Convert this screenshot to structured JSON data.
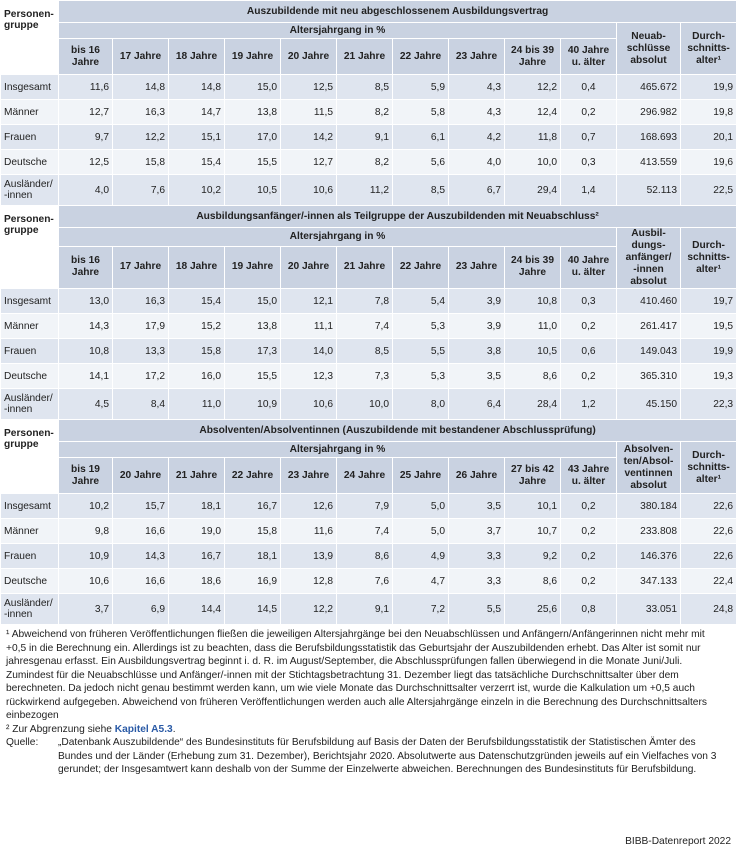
{
  "sections": [
    {
      "title": "Auszubildende mit neu abgeschlossenem Ausbildungsvertrag",
      "row_header": "Personen-\ngruppe",
      "age_header": "Altersjahrgang in %",
      "age_columns": [
        "bis 16 Jahre",
        "17 Jahre",
        "18 Jahre",
        "19 Jahre",
        "20 Jahre",
        "21 Jahre",
        "22 Jahre",
        "23 Jahre",
        "24 bis 39 Jahre",
        "40 Jahre u. älter"
      ],
      "abs_header": "Neuab-\nschlüsse\nabsolut",
      "avg_header": "Durch-\nschnitts-\nalter¹",
      "rows": [
        {
          "label": "Insgesamt",
          "values": [
            "11,6",
            "14,8",
            "14,8",
            "15,0",
            "12,5",
            "8,5",
            "5,9",
            "4,3",
            "12,2",
            "0,4"
          ],
          "abs": "465.672",
          "avg": "19,9"
        },
        {
          "label": "Männer",
          "values": [
            "12,7",
            "16,3",
            "14,7",
            "13,8",
            "11,5",
            "8,2",
            "5,8",
            "4,3",
            "12,4",
            "0,2"
          ],
          "abs": "296.982",
          "avg": "19,8"
        },
        {
          "label": "Frauen",
          "values": [
            "9,7",
            "12,2",
            "15,1",
            "17,0",
            "14,2",
            "9,1",
            "6,1",
            "4,2",
            "11,8",
            "0,7"
          ],
          "abs": "168.693",
          "avg": "20,1"
        },
        {
          "label": "Deutsche",
          "values": [
            "12,5",
            "15,8",
            "15,4",
            "15,5",
            "12,7",
            "8,2",
            "5,6",
            "4,0",
            "10,0",
            "0,3"
          ],
          "abs": "413.559",
          "avg": "19,6"
        },
        {
          "label": "Ausländer/\n-innen",
          "values": [
            "4,0",
            "7,6",
            "10,2",
            "10,5",
            "10,6",
            "11,2",
            "8,5",
            "6,7",
            "29,4",
            "1,4"
          ],
          "abs": "52.113",
          "avg": "22,5"
        }
      ]
    },
    {
      "title": "Ausbildungsanfänger/-innen als Teilgruppe der Auszubildenden mit Neuabschluss²",
      "row_header": "Personen-\ngruppe",
      "age_header": "Altersjahrgang in %",
      "age_columns": [
        "bis 16 Jahre",
        "17 Jahre",
        "18 Jahre",
        "19 Jahre",
        "20 Jahre",
        "21 Jahre",
        "22 Jahre",
        "23 Jahre",
        "24 bis 39 Jahre",
        "40 Jahre u. älter"
      ],
      "abs_header": "Ausbil-\ndungs-\nanfänger/\n-innen\nabsolut",
      "avg_header": "Durch-\nschnitts-\nalter¹",
      "rows": [
        {
          "label": "Insgesamt",
          "values": [
            "13,0",
            "16,3",
            "15,4",
            "15,0",
            "12,1",
            "7,8",
            "5,4",
            "3,9",
            "10,8",
            "0,3"
          ],
          "abs": "410.460",
          "avg": "19,7"
        },
        {
          "label": "Männer",
          "values": [
            "14,3",
            "17,9",
            "15,2",
            "13,8",
            "11,1",
            "7,4",
            "5,3",
            "3,9",
            "11,0",
            "0,2"
          ],
          "abs": "261.417",
          "avg": "19,5"
        },
        {
          "label": "Frauen",
          "values": [
            "10,8",
            "13,3",
            "15,8",
            "17,3",
            "14,0",
            "8,5",
            "5,5",
            "3,8",
            "10,5",
            "0,6"
          ],
          "abs": "149.043",
          "avg": "19,9"
        },
        {
          "label": "Deutsche",
          "values": [
            "14,1",
            "17,2",
            "16,0",
            "15,5",
            "12,3",
            "7,3",
            "5,3",
            "3,5",
            "8,6",
            "0,2"
          ],
          "abs": "365.310",
          "avg": "19,3"
        },
        {
          "label": "Ausländer/\n-innen",
          "values": [
            "4,5",
            "8,4",
            "11,0",
            "10,9",
            "10,6",
            "10,0",
            "8,0",
            "6,4",
            "28,4",
            "1,2"
          ],
          "abs": "45.150",
          "avg": "22,3"
        }
      ]
    },
    {
      "title": "Absolventen/Absolventinnen (Auszubildende mit bestandener Abschlussprüfung)",
      "row_header": "Personen-\ngruppe",
      "age_header": "Altersjahrgang in %",
      "age_columns": [
        "bis 19 Jahre",
        "20 Jahre",
        "21 Jahre",
        "22 Jahre",
        "23 Jahre",
        "24 Jahre",
        "25 Jahre",
        "26 Jahre",
        "27 bis 42 Jahre",
        "43 Jahre u. älter"
      ],
      "abs_header": "Absolven-\nten/Absol-\nventinnen\nabsolut",
      "avg_header": "Durch-\nschnitts-\nalter¹",
      "rows": [
        {
          "label": "Insgesamt",
          "values": [
            "10,2",
            "15,7",
            "18,1",
            "16,7",
            "12,6",
            "7,9",
            "5,0",
            "3,5",
            "10,1",
            "0,2"
          ],
          "abs": "380.184",
          "avg": "22,6"
        },
        {
          "label": "Männer",
          "values": [
            "9,8",
            "16,6",
            "19,0",
            "15,8",
            "11,6",
            "7,4",
            "5,0",
            "3,7",
            "10,7",
            "0,2"
          ],
          "abs": "233.808",
          "avg": "22,6"
        },
        {
          "label": "Frauen",
          "values": [
            "10,9",
            "14,3",
            "16,7",
            "18,1",
            "13,9",
            "8,6",
            "4,9",
            "3,3",
            "9,2",
            "0,2"
          ],
          "abs": "146.376",
          "avg": "22,6"
        },
        {
          "label": "Deutsche",
          "values": [
            "10,6",
            "16,6",
            "18,6",
            "16,9",
            "12,8",
            "7,6",
            "4,7",
            "3,3",
            "8,6",
            "0,2"
          ],
          "abs": "347.133",
          "avg": "22,4"
        },
        {
          "label": "Ausländer/\n-innen",
          "values": [
            "3,7",
            "6,9",
            "14,4",
            "14,5",
            "12,2",
            "9,1",
            "7,2",
            "5,5",
            "25,6",
            "0,8"
          ],
          "abs": "33.051",
          "avg": "24,8"
        }
      ]
    }
  ],
  "footnotes": {
    "note1_marker": "¹",
    "note1": "Abweichend von früheren Veröffentlichungen fließen die jeweiligen Altersjahrgänge bei den Neuabschlüssen und Anfängern/Anfängerinnen nicht mehr mit +0,5 in die Berechnung ein. Allerdings ist zu beachten, dass die Berufsbildungsstatistik das Geburtsjahr der Auszubildenden erhebt. Das Alter ist somit nur jahresgenau erfasst. Ein Ausbildungsvertrag beginnt i. d. R. im August/September, die Abschlussprüfungen fallen überwiegend in die Monate Juni/Juli. Zumindest für die Neuabschlüsse und Anfänger/-innen mit der Stichtagsbetrachtung 31. Dezember liegt das tatsächliche Durchschnittsalter über dem berechneten. Da jedoch nicht genau bestimmt werden kann, um wie viele Monate das Durchschnittsalter verzerrt ist, wurde die Kalkulation um +0,5 auch rückwirkend aufgegeben. Abweichend von früheren Veröffentlichungen werden auch alle Altersjahrgänge einzeln in die Berechnung des Durchschnittsalters einbezogen",
    "note2_marker": "²",
    "note2_prefix": "Zur Abgrenzung siehe ",
    "note2_link": "Kapitel A5.3",
    "note2_suffix": ".",
    "source_label": "Quelle:",
    "source": "„Datenbank Auszubildende“ des Bundesinstituts für Berufsbildung auf Basis der Daten der Berufsbildungsstatistik der Statistischen Ämter des Bundes und der Länder (Erhebung zum 31. Dezember), Berichtsjahr 2020. Absolutwerte aus Datenschutzgründen jeweils auf ein Vielfaches von 3 gerundet; der Insgesamtwert kann deshalb von der Summe der Einzelwerte abweichen. Berechnungen des Bundesinstituts für Berufsbildung.",
    "brand": "BIBB-Datenreport 2022"
  },
  "colors": {
    "header": "#c9d2e1",
    "row_dark": "#dfe5ef",
    "row_light": "#f1f4f8",
    "link": "#2a5aa6"
  }
}
